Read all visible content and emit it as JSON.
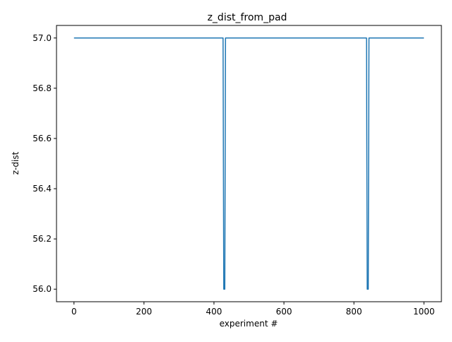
{
  "chart_data": {
    "type": "line",
    "title": "z_dist_from_pad",
    "xlabel": "experiment #",
    "ylabel": "z-dist",
    "xlim": [
      -50,
      1050
    ],
    "ylim": [
      55.95,
      57.05
    ],
    "x_ticks": [
      {
        "value": 0,
        "label": "0"
      },
      {
        "value": 200,
        "label": "200"
      },
      {
        "value": 400,
        "label": "400"
      },
      {
        "value": 600,
        "label": "600"
      },
      {
        "value": 800,
        "label": "800"
      },
      {
        "value": 1000,
        "label": "1000"
      }
    ],
    "y_ticks": [
      {
        "value": 56.0,
        "label": "56.0"
      },
      {
        "value": 56.2,
        "label": "56.2"
      },
      {
        "value": 56.4,
        "label": "56.4"
      },
      {
        "value": 56.6,
        "label": "56.6"
      },
      {
        "value": 56.8,
        "label": "56.8"
      },
      {
        "value": 57.0,
        "label": "57.0"
      }
    ],
    "grid": false,
    "legend": false,
    "series": [
      {
        "color": "#1f77b4",
        "x": [
          0,
          426,
          427,
          428,
          429,
          430,
          431,
          432,
          433,
          434,
          835,
          836,
          837,
          838,
          839,
          840,
          841,
          842,
          843,
          1000
        ],
        "y": [
          57.0,
          57.0,
          56.5,
          56.0,
          56.0,
          56.0,
          56.0,
          56.5,
          57.0,
          57.0,
          57.0,
          57.0,
          56.5,
          56.0,
          56.0,
          56.0,
          56.0,
          56.5,
          57.0,
          57.0
        ]
      }
    ]
  }
}
